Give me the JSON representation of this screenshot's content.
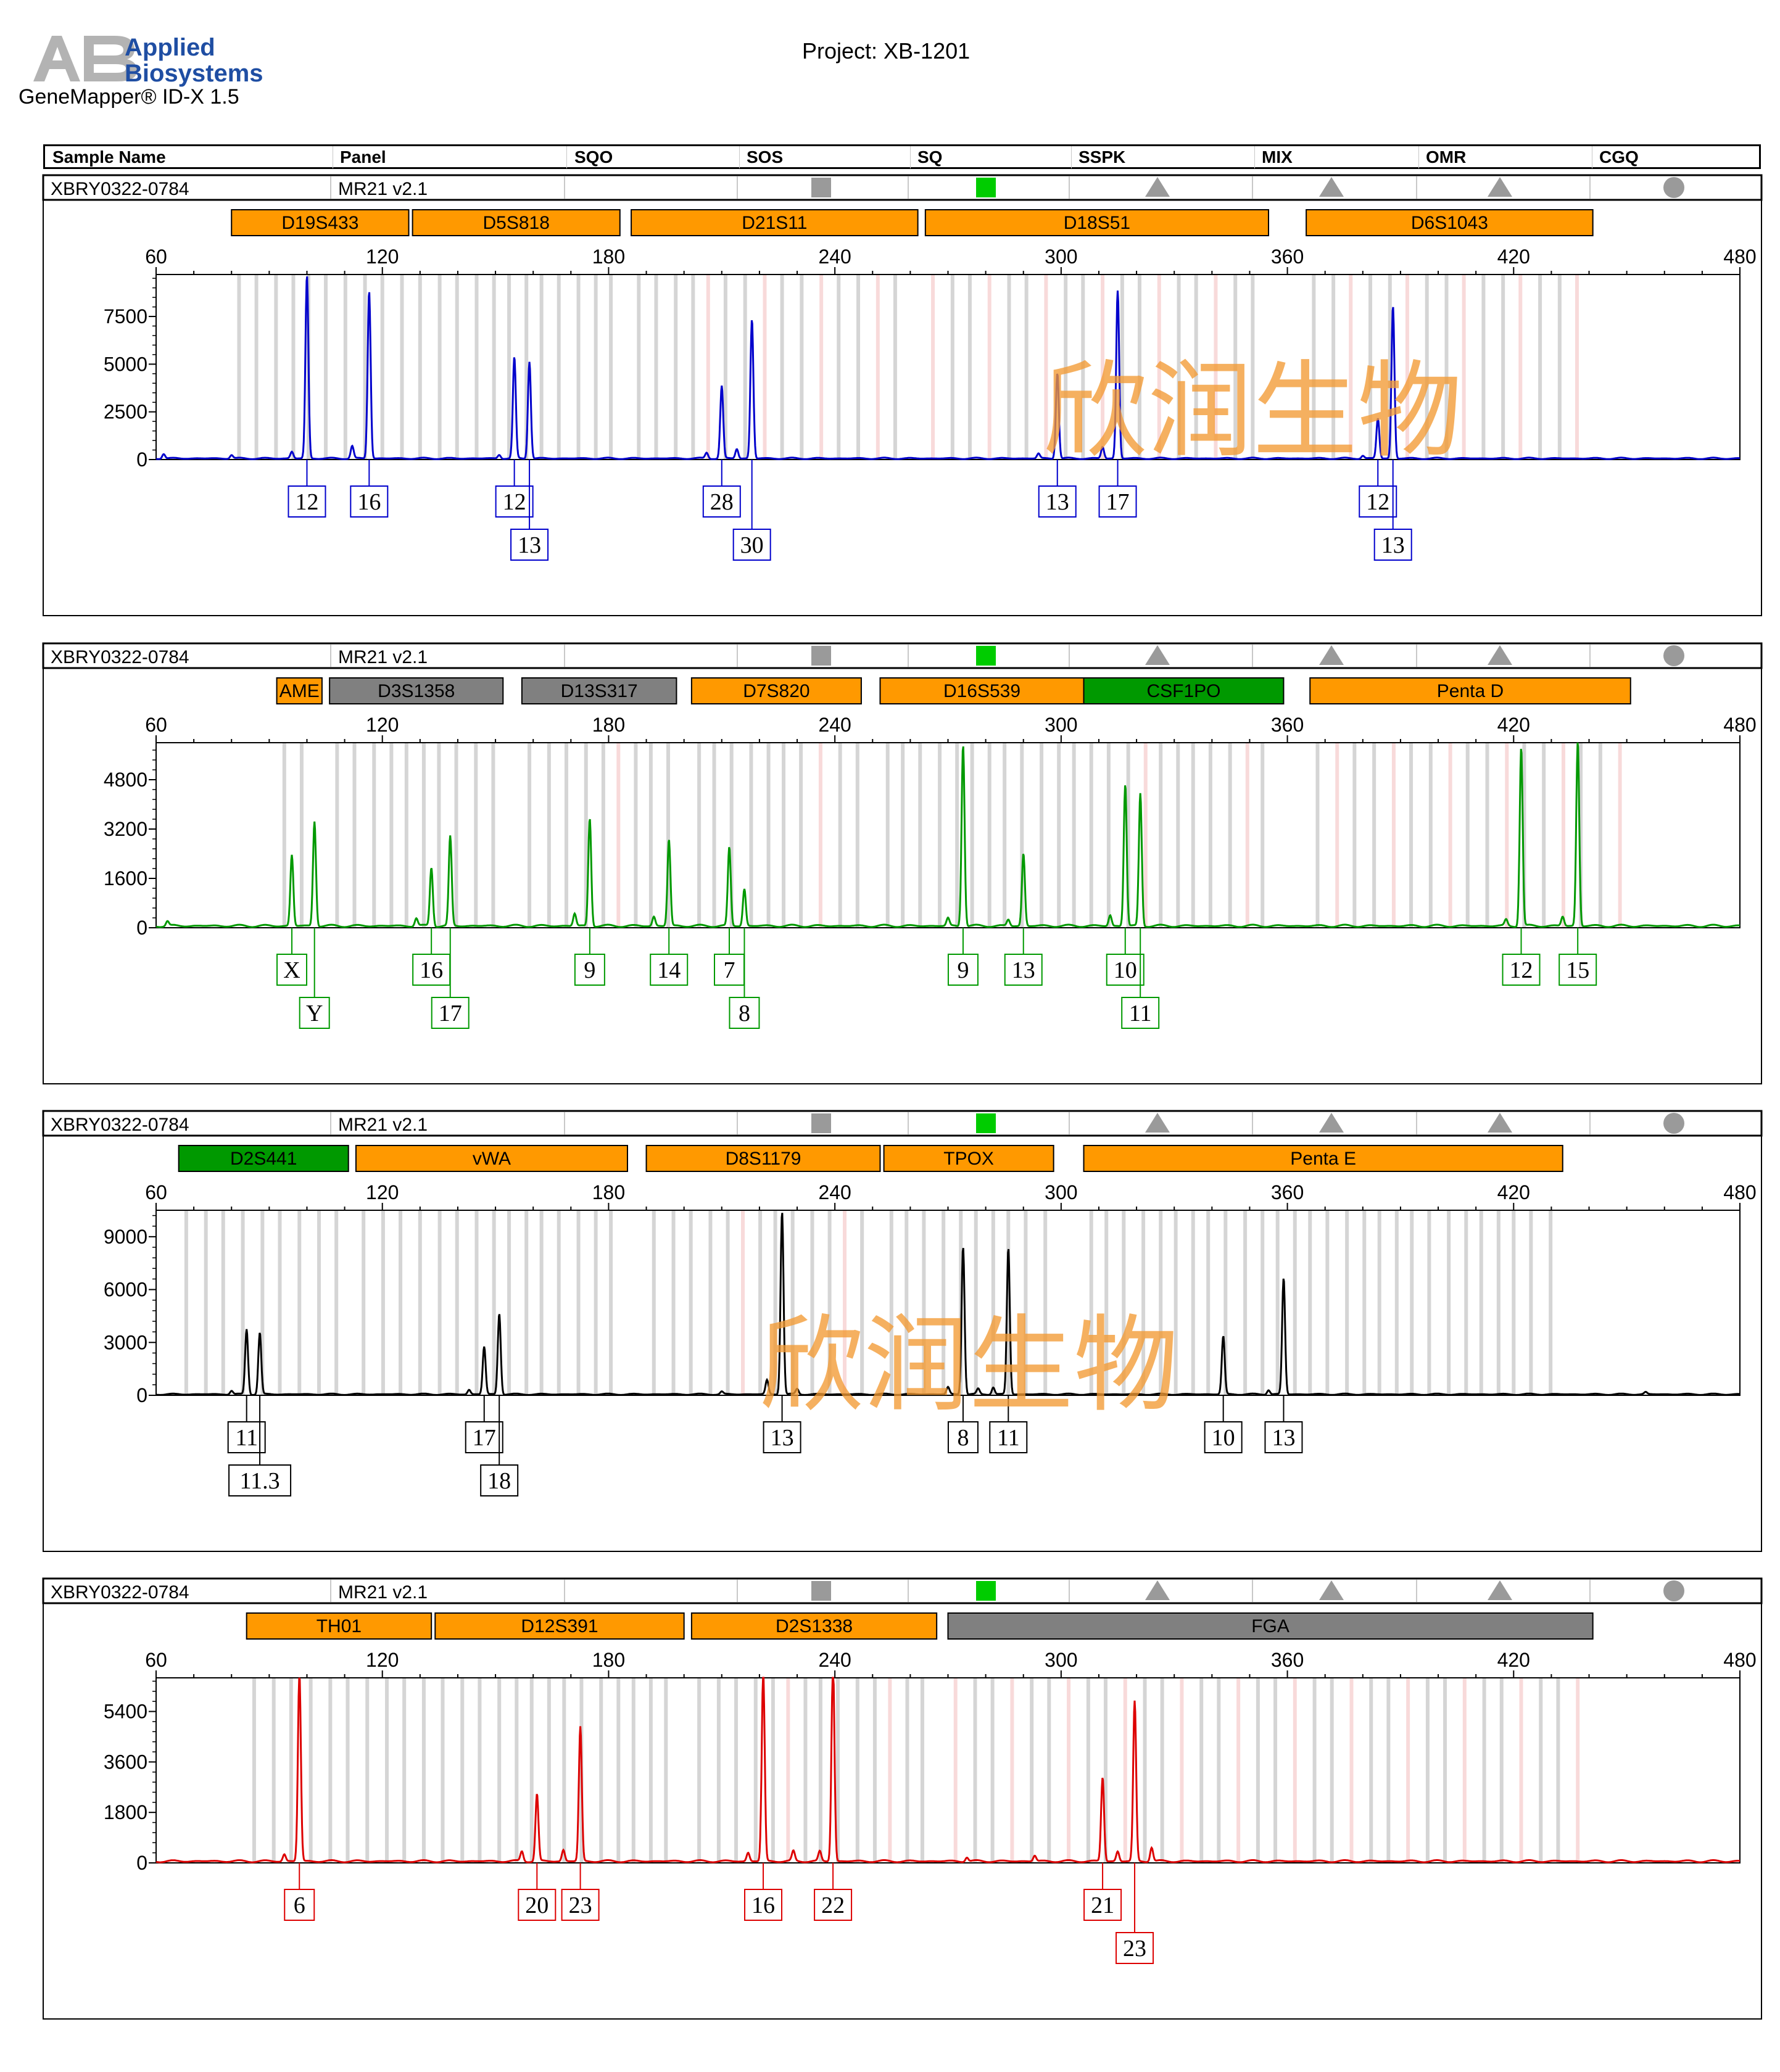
{
  "app": {
    "company_line1": "Applied",
    "company_line2": "Biosystems",
    "product": "GeneMapper® ID-X  1.5",
    "project": "Project: XB-1201",
    "logo_text": "AB"
  },
  "header": {
    "columns": [
      "Sample Name",
      "Panel",
      "SQO",
      "SOS",
      "SQ",
      "SSPK",
      "MIX",
      "OMR",
      "CGQ"
    ]
  },
  "watermark": "欣润生物",
  "colors": {
    "locus_orange": "#ff9900",
    "locus_green": "#009900",
    "locus_gray": "#808080",
    "flag_gray": "#9a9a9a",
    "flag_green": "#00cc00",
    "bin_gray": "#d0d0d0",
    "bin_pink": "#f7d6d6",
    "watermark": "#f29a33"
  },
  "chart_data": [
    {
      "type": "line",
      "dye": "blue",
      "color": "#0000cc",
      "sample": "XBRY0322-0784",
      "panel": "MR21  v2.1",
      "flags": {
        "SOS": "gray-square",
        "SQ": "green-square",
        "SSPK": "gray-triangle",
        "MIX": "gray-triangle",
        "OMR": "gray-triangle",
        "CGQ": "gray-circle"
      },
      "xlim": [
        60,
        480
      ],
      "x_ticks": [
        60,
        120,
        180,
        240,
        300,
        360,
        420,
        480
      ],
      "ylim": [
        0,
        9700
      ],
      "y_ticks": [
        0,
        2500,
        5000,
        7500
      ],
      "loci": [
        {
          "name": "D19S433",
          "start": 80,
          "end": 127,
          "color": "orange"
        },
        {
          "name": "D5S818",
          "start": 128,
          "end": 183,
          "color": "orange"
        },
        {
          "name": "D21S11",
          "start": 186,
          "end": 262,
          "color": "orange"
        },
        {
          "name": "D18S51",
          "start": 264,
          "end": 355,
          "color": "orange"
        },
        {
          "name": "D6S1043",
          "start": 365,
          "end": 441,
          "color": "orange"
        }
      ],
      "peaks": [
        {
          "x": 100,
          "y": 9600,
          "label": "12"
        },
        {
          "x": 116.5,
          "y": 8800,
          "label": "16"
        },
        {
          "x": 155,
          "y": 5300,
          "label": "12"
        },
        {
          "x": 159,
          "y": 5100,
          "label": "13"
        },
        {
          "x": 210,
          "y": 3800,
          "label": "28"
        },
        {
          "x": 218,
          "y": 7300,
          "label": "30"
        },
        {
          "x": 299,
          "y": 4500,
          "label": "13"
        },
        {
          "x": 315,
          "y": 8800,
          "label": "17"
        },
        {
          "x": 384,
          "y": 2100,
          "label": "12"
        },
        {
          "x": 388,
          "y": 8000,
          "label": "13"
        }
      ],
      "minor_peaks": [
        {
          "x": 62,
          "y": 250
        },
        {
          "x": 80,
          "y": 180
        },
        {
          "x": 96,
          "y": 350
        },
        {
          "x": 112,
          "y": 650
        },
        {
          "x": 151,
          "y": 200
        },
        {
          "x": 206,
          "y": 300
        },
        {
          "x": 214,
          "y": 500
        },
        {
          "x": 294,
          "y": 250
        },
        {
          "x": 311,
          "y": 600
        },
        {
          "x": 380,
          "y": 150
        }
      ]
    },
    {
      "type": "line",
      "dye": "green",
      "color": "#009900",
      "sample": "XBRY0322-0784",
      "panel": "MR21  v2.1",
      "flags": {
        "SOS": "gray-square",
        "SQ": "green-square",
        "SSPK": "gray-triangle",
        "MIX": "gray-triangle",
        "OMR": "gray-triangle",
        "CGQ": "gray-circle"
      },
      "xlim": [
        60,
        480
      ],
      "x_ticks": [
        60,
        120,
        180,
        240,
        300,
        360,
        420,
        480
      ],
      "ylim": [
        0,
        6000
      ],
      "y_ticks": [
        0,
        1600,
        3200,
        4800
      ],
      "loci": [
        {
          "name": "AME",
          "start": 92,
          "end": 104,
          "color": "orange"
        },
        {
          "name": "D3S1358",
          "start": 106,
          "end": 152,
          "color": "gray"
        },
        {
          "name": "D13S317",
          "start": 157,
          "end": 198,
          "color": "gray"
        },
        {
          "name": "D7S820",
          "start": 202,
          "end": 247,
          "color": "orange"
        },
        {
          "name": "D16S539",
          "start": 252,
          "end": 306,
          "color": "orange"
        },
        {
          "name": "CSF1PO",
          "start": 306,
          "end": 359,
          "color": "green"
        },
        {
          "name": "Penta D",
          "start": 366,
          "end": 451,
          "color": "orange"
        }
      ],
      "peaks": [
        {
          "x": 96,
          "y": 2300,
          "label": "X"
        },
        {
          "x": 102,
          "y": 3400,
          "label": "Y"
        },
        {
          "x": 133,
          "y": 1900,
          "label": "16"
        },
        {
          "x": 138,
          "y": 2900,
          "label": "17"
        },
        {
          "x": 175,
          "y": 3500,
          "label": "9"
        },
        {
          "x": 196,
          "y": 2800,
          "label": "14"
        },
        {
          "x": 212,
          "y": 2550,
          "label": "7"
        },
        {
          "x": 216,
          "y": 1200,
          "label": "8"
        },
        {
          "x": 274,
          "y": 5900,
          "label": "9"
        },
        {
          "x": 290,
          "y": 2350,
          "label": "13"
        },
        {
          "x": 317,
          "y": 4600,
          "label": "10"
        },
        {
          "x": 321,
          "y": 4300,
          "label": "11"
        },
        {
          "x": 422,
          "y": 5800,
          "label": "12"
        },
        {
          "x": 437,
          "y": 6000,
          "label": "15"
        }
      ],
      "minor_peaks": [
        {
          "x": 63,
          "y": 150
        },
        {
          "x": 129,
          "y": 250
        },
        {
          "x": 171,
          "y": 400
        },
        {
          "x": 192,
          "y": 300
        },
        {
          "x": 270,
          "y": 250
        },
        {
          "x": 286,
          "y": 200
        },
        {
          "x": 313,
          "y": 350
        },
        {
          "x": 418,
          "y": 200
        },
        {
          "x": 433,
          "y": 300
        }
      ]
    },
    {
      "type": "line",
      "dye": "yellow",
      "color": "#000000",
      "sample": "XBRY0322-0784",
      "panel": "MR21  v2.1",
      "flags": {
        "SOS": "gray-square",
        "SQ": "green-square",
        "SSPK": "gray-triangle",
        "MIX": "gray-triangle",
        "OMR": "gray-triangle",
        "CGQ": "gray-circle"
      },
      "xlim": [
        60,
        480
      ],
      "x_ticks": [
        60,
        120,
        180,
        240,
        300,
        360,
        420,
        480
      ],
      "ylim": [
        0,
        10500
      ],
      "y_ticks": [
        0,
        3000,
        6000,
        9000
      ],
      "loci": [
        {
          "name": "D2S441",
          "start": 66,
          "end": 111,
          "color": "green"
        },
        {
          "name": "vWA",
          "start": 113,
          "end": 185,
          "color": "orange"
        },
        {
          "name": "D8S1179",
          "start": 190,
          "end": 252,
          "color": "orange"
        },
        {
          "name": "TPOX",
          "start": 253,
          "end": 298,
          "color": "orange"
        },
        {
          "name": "Penta E",
          "start": 306,
          "end": 433,
          "color": "orange"
        }
      ],
      "peaks": [
        {
          "x": 84,
          "y": 3700,
          "label": "11"
        },
        {
          "x": 87.5,
          "y": 3500,
          "label": "11.3"
        },
        {
          "x": 147,
          "y": 2700,
          "label": "17"
        },
        {
          "x": 151,
          "y": 4600,
          "label": "18"
        },
        {
          "x": 226,
          "y": 10400,
          "label": "13"
        },
        {
          "x": 274,
          "y": 8400,
          "label": "8"
        },
        {
          "x": 286,
          "y": 8300,
          "label": "11"
        },
        {
          "x": 343,
          "y": 3300,
          "label": "10"
        },
        {
          "x": 359,
          "y": 6600,
          "label": "13"
        }
      ],
      "minor_peaks": [
        {
          "x": 80,
          "y": 200
        },
        {
          "x": 143,
          "y": 250
        },
        {
          "x": 222,
          "y": 800
        },
        {
          "x": 230,
          "y": 300
        },
        {
          "x": 270,
          "y": 400
        },
        {
          "x": 278,
          "y": 300
        },
        {
          "x": 282,
          "y": 400
        },
        {
          "x": 355,
          "y": 250
        },
        {
          "x": 210,
          "y": 150
        },
        {
          "x": 455,
          "y": 120
        }
      ]
    },
    {
      "type": "line",
      "dye": "red",
      "color": "#dd0000",
      "sample": "XBRY0322-0784",
      "panel": "MR21  v2.1",
      "flags": {
        "SOS": "gray-square",
        "SQ": "green-square",
        "SSPK": "gray-triangle",
        "MIX": "gray-triangle",
        "OMR": "gray-triangle",
        "CGQ": "gray-circle"
      },
      "xlim": [
        60,
        480
      ],
      "x_ticks": [
        60,
        120,
        180,
        240,
        300,
        360,
        420,
        480
      ],
      "ylim": [
        0,
        6600
      ],
      "y_ticks": [
        0,
        1800,
        3600,
        5400
      ],
      "loci": [
        {
          "name": "TH01",
          "start": 84,
          "end": 133,
          "color": "orange"
        },
        {
          "name": "D12S391",
          "start": 134,
          "end": 200,
          "color": "orange"
        },
        {
          "name": "D2S1338",
          "start": 202,
          "end": 267,
          "color": "orange"
        },
        {
          "name": "FGA",
          "start": 270,
          "end": 441,
          "color": "gray"
        }
      ],
      "peaks": [
        {
          "x": 98,
          "y": 6700,
          "label": "6"
        },
        {
          "x": 161,
          "y": 2400,
          "label": "20"
        },
        {
          "x": 172.5,
          "y": 4800,
          "label": "23"
        },
        {
          "x": 221,
          "y": 6800,
          "label": "16"
        },
        {
          "x": 239.5,
          "y": 7200,
          "label": "22"
        },
        {
          "x": 311,
          "y": 3000,
          "label": "21"
        },
        {
          "x": 319.5,
          "y": 5700,
          "label": "23"
        }
      ],
      "minor_peaks": [
        {
          "x": 94,
          "y": 250
        },
        {
          "x": 157,
          "y": 350
        },
        {
          "x": 168,
          "y": 400
        },
        {
          "x": 217,
          "y": 300
        },
        {
          "x": 229,
          "y": 350
        },
        {
          "x": 236,
          "y": 350
        },
        {
          "x": 275,
          "y": 150
        },
        {
          "x": 293,
          "y": 200
        },
        {
          "x": 315,
          "y": 350
        },
        {
          "x": 324,
          "y": 500
        }
      ]
    }
  ]
}
